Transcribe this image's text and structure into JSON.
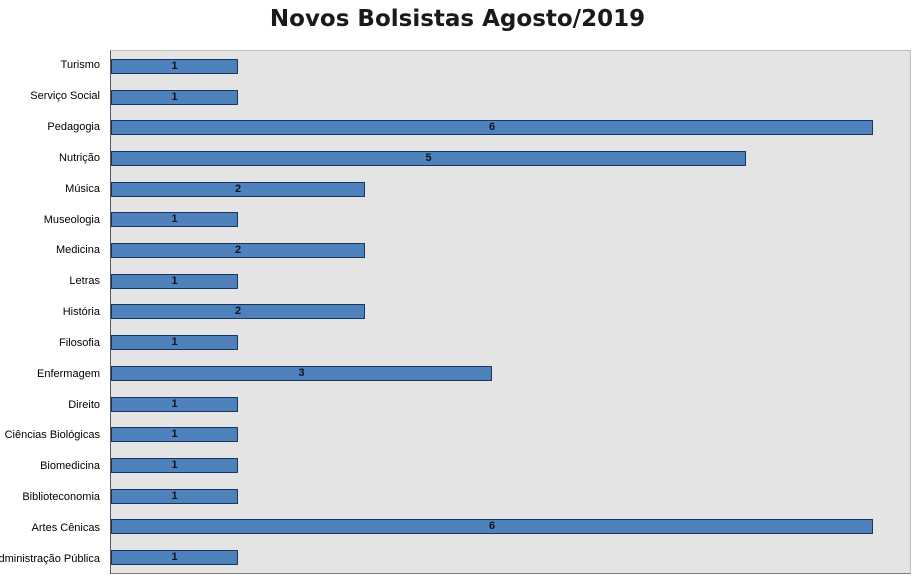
{
  "chart_data": {
    "type": "bar",
    "orientation": "horizontal",
    "title": "Novos Bolsistas Agosto/2019",
    "categories": [
      "Turismo",
      "Serviço Social",
      "Pedagogia",
      "Nutrição",
      "Música",
      "Museologia",
      "Medicina",
      "Letras",
      "História",
      "Filosofia",
      "Enfermagem",
      "Direito",
      "Ciências Biológicas",
      "Biomedicina",
      "Biblioteconomia",
      "Artes Cênicas",
      "Administração Pública"
    ],
    "values": [
      1,
      1,
      6,
      5,
      2,
      1,
      2,
      1,
      2,
      1,
      3,
      1,
      1,
      1,
      1,
      6,
      1
    ],
    "xlabel": "",
    "ylabel": "",
    "xlim": [
      0,
      6
    ],
    "grid": false,
    "legend": false,
    "data_labels": true,
    "bar_color": "#4f81bd",
    "bar_border_color": "#17375e",
    "plot_background": "#e4e4e4",
    "label_color": "#10151c"
  }
}
